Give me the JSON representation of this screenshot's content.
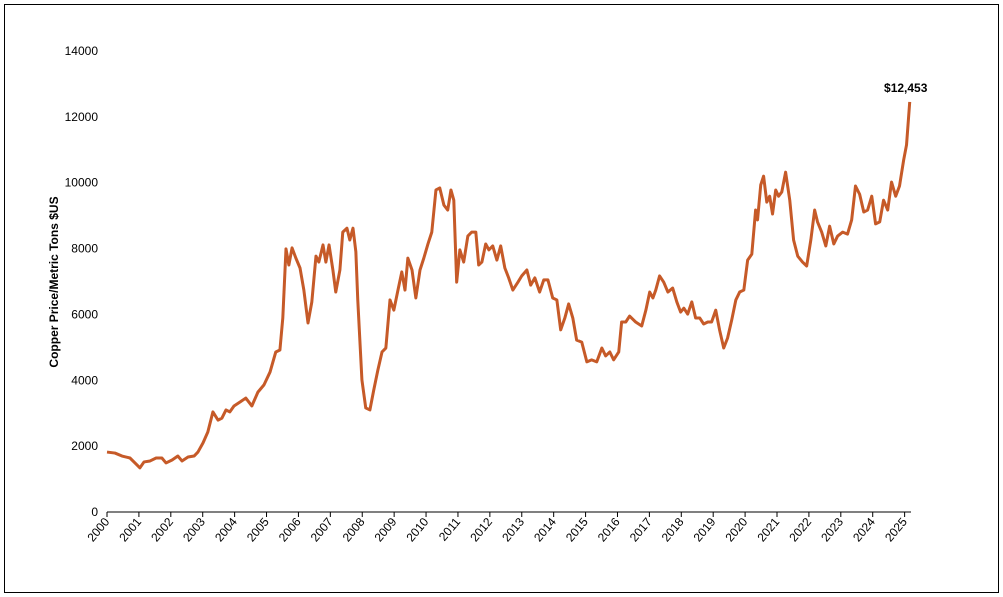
{
  "chart_data": {
    "type": "line",
    "y_label": "Copper Price/Metric Tons $US",
    "annotation": "$12,453",
    "color": "#c65a28",
    "xlim": [
      2000,
      2025.2
    ],
    "xticks": [
      2000,
      2001,
      2002,
      2003,
      2004,
      2005,
      2006,
      2007,
      2008,
      2009,
      2010,
      2011,
      2012,
      2013,
      2014,
      2015,
      2016,
      2017,
      2018,
      2019,
      2020,
      2021,
      2022,
      2023,
      2024,
      2025
    ],
    "ylim": [
      0,
      14000
    ],
    "yticks": [
      0,
      2000,
      4000,
      6000,
      8000,
      10000,
      12000,
      14000
    ],
    "grid": false,
    "x": [
      2000.0,
      2000.25,
      2000.47,
      2000.72,
      2000.94,
      2001.03,
      2001.16,
      2001.35,
      2001.54,
      2001.72,
      2001.85,
      2002.04,
      2002.22,
      2002.35,
      2002.54,
      2002.73,
      2002.85,
      2003.01,
      2003.16,
      2003.32,
      2003.48,
      2003.6,
      2003.73,
      2003.85,
      2003.98,
      2004.17,
      2004.35,
      2004.54,
      2004.73,
      2004.92,
      2005.11,
      2005.29,
      2005.42,
      2005.51,
      2005.61,
      2005.7,
      2005.8,
      2005.92,
      2006.05,
      2006.17,
      2006.3,
      2006.42,
      2006.55,
      2006.64,
      2006.77,
      2006.86,
      2006.96,
      2007.08,
      2007.17,
      2007.3,
      2007.39,
      2007.52,
      2007.61,
      2007.71,
      2007.8,
      2007.86,
      2007.99,
      2008.11,
      2008.24,
      2008.36,
      2008.49,
      2008.62,
      2008.74,
      2008.87,
      2008.99,
      2009.12,
      2009.24,
      2009.34,
      2009.43,
      2009.56,
      2009.68,
      2009.81,
      2009.93,
      2010.06,
      2010.18,
      2010.31,
      2010.43,
      2010.56,
      2010.68,
      2010.78,
      2010.87,
      2010.96,
      2011.06,
      2011.18,
      2011.31,
      2011.43,
      2011.56,
      2011.65,
      2011.75,
      2011.87,
      2011.97,
      2012.09,
      2012.22,
      2012.34,
      2012.47,
      2012.59,
      2012.72,
      2012.88,
      2013.0,
      2013.16,
      2013.28,
      2013.41,
      2013.56,
      2013.69,
      2013.82,
      2013.97,
      2014.1,
      2014.22,
      2014.35,
      2014.47,
      2014.6,
      2014.72,
      2014.88,
      2015.04,
      2015.19,
      2015.35,
      2015.51,
      2015.63,
      2015.76,
      2015.88,
      2016.04,
      2016.13,
      2016.26,
      2016.38,
      2016.57,
      2016.76,
      2016.89,
      2017.01,
      2017.11,
      2017.2,
      2017.32,
      2017.45,
      2017.58,
      2017.73,
      2017.86,
      2017.98,
      2018.08,
      2018.2,
      2018.33,
      2018.45,
      2018.58,
      2018.7,
      2018.83,
      2018.95,
      2019.08,
      2019.2,
      2019.33,
      2019.45,
      2019.58,
      2019.71,
      2019.83,
      2019.96,
      2020.08,
      2020.21,
      2020.33,
      2020.39,
      2020.49,
      2020.58,
      2020.68,
      2020.77,
      2020.86,
      2020.96,
      2021.05,
      2021.15,
      2021.27,
      2021.4,
      2021.52,
      2021.65,
      2021.8,
      2021.93,
      2022.06,
      2022.18,
      2022.27,
      2022.4,
      2022.53,
      2022.65,
      2022.78,
      2022.9,
      2023.06,
      2023.21,
      2023.34,
      2023.46,
      2023.59,
      2023.72,
      2023.84,
      2023.97,
      2024.09,
      2024.22,
      2024.34,
      2024.47,
      2024.59,
      2024.72,
      2024.84,
      2024.97,
      2025.06,
      2025.16
    ],
    "values": [
      1820,
      1790,
      1700,
      1640,
      1430,
      1340,
      1520,
      1550,
      1640,
      1640,
      1490,
      1580,
      1700,
      1550,
      1670,
      1700,
      1820,
      2100,
      2430,
      3040,
      2790,
      2850,
      3100,
      3040,
      3220,
      3340,
      3460,
      3220,
      3640,
      3860,
      4250,
      4860,
      4920,
      5890,
      7990,
      7500,
      8020,
      7710,
      7410,
      6740,
      5740,
      6380,
      7770,
      7590,
      8110,
      7590,
      8110,
      7350,
      6680,
      7350,
      8500,
      8620,
      8260,
      8620,
      7900,
      6440,
      4010,
      3160,
      3100,
      3700,
      4310,
      4860,
      4980,
      6440,
      6130,
      6740,
      7290,
      6740,
      7710,
      7350,
      6500,
      7350,
      7710,
      8140,
      8500,
      9780,
      9840,
      9320,
      9170,
      9780,
      9470,
      6980,
      7960,
      7590,
      8380,
      8500,
      8500,
      7500,
      7590,
      8140,
      7960,
      8080,
      7650,
      8080,
      7410,
      7110,
      6740,
      6980,
      7170,
      7350,
      6890,
      7110,
      6680,
      7050,
      7050,
      6500,
      6440,
      5530,
      5890,
      6320,
      5890,
      5220,
      5160,
      4560,
      4620,
      4560,
      4980,
      4740,
      4860,
      4620,
      4860,
      5770,
      5770,
      5950,
      5770,
      5650,
      6130,
      6680,
      6500,
      6740,
      7170,
      6980,
      6680,
      6800,
      6380,
      6070,
      6190,
      6010,
      6380,
      5890,
      5890,
      5710,
      5770,
      5770,
      6130,
      5530,
      4980,
      5280,
      5830,
      6440,
      6680,
      6740,
      7650,
      7830,
      9170,
      8870,
      9930,
      10200,
      9410,
      9590,
      9050,
      9780,
      9590,
      9720,
      10320,
      9470,
      8260,
      7770,
      7590,
      7470,
      8260,
      9170,
      8810,
      8500,
      8080,
      8680,
      8140,
      8380,
      8500,
      8440,
      8870,
      9900,
      9650,
      9110,
      9170,
      9590,
      8750,
      8810,
      9470,
      9170,
      10020,
      9590,
      9900,
      10690,
      11150,
      12453
    ]
  }
}
